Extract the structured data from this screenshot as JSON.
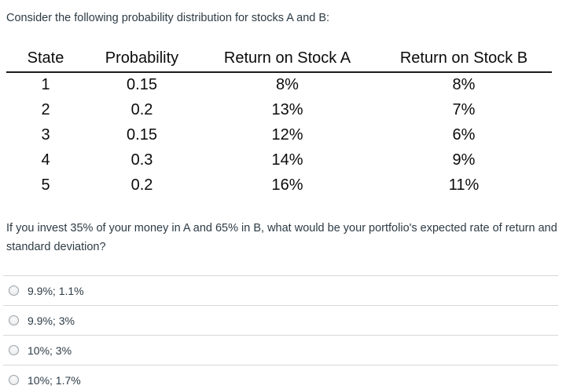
{
  "page": {
    "intro": "Consider the following probability distribution for stocks A and B:",
    "prompt": "If you invest 35% of your money in A and 65% in B, what would be your portfolio's expected rate of return and standard deviation?"
  },
  "table": {
    "headers": [
      "State",
      "Probability",
      "Return on Stock A",
      "Return on Stock B"
    ],
    "rows": [
      [
        "1",
        "0.15",
        "8%",
        "8%"
      ],
      [
        "2",
        "0.2",
        "13%",
        "7%"
      ],
      [
        "3",
        "0.15",
        "12%",
        "6%"
      ],
      [
        "4",
        "0.3",
        "14%",
        "9%"
      ],
      [
        "5",
        "0.2",
        "16%",
        "11%"
      ]
    ]
  },
  "answers": {
    "options": [
      {
        "label": "9.9%; 1.1%",
        "selected": false
      },
      {
        "label": "9.9%; 3%",
        "selected": false
      },
      {
        "label": "10%; 3%",
        "selected": false
      },
      {
        "label": "10%; 1.7%",
        "selected": false
      }
    ]
  },
  "colors": {
    "body_text": "#2D3B45",
    "table_text": "#0b0b0b",
    "divider": "#d8d8d8",
    "radio_border": "#9aa2a8"
  }
}
